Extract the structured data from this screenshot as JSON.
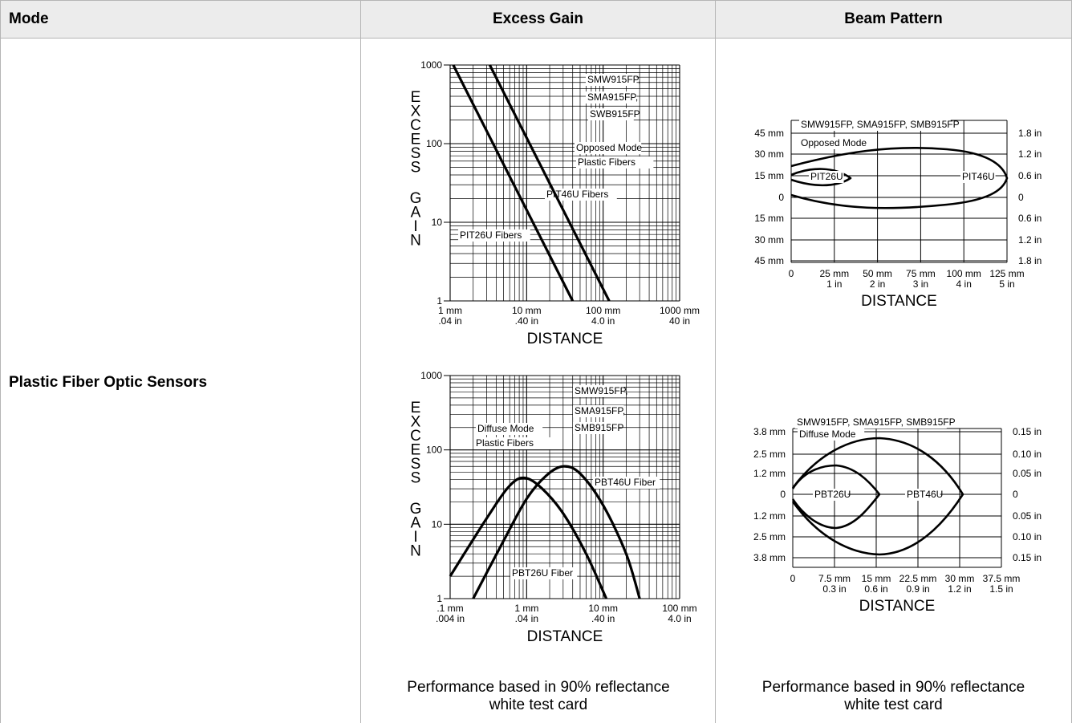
{
  "table": {
    "headers": [
      "Mode",
      "Excess Gain",
      "Beam Pattern"
    ],
    "mode": "Plastic Fiber Optic Sensors",
    "note": [
      "Performance based in 90% reflectance",
      "white test card"
    ]
  },
  "chart_data": [
    {
      "type": "line",
      "title": "",
      "scale": "log-log",
      "ylabel": "EXCESS GAIN",
      "xlabel": "DISTANCE",
      "ylim": [
        1,
        1000
      ],
      "xlim": [
        1,
        1000
      ],
      "y_ticks": [
        "1000",
        "100",
        "10",
        "1"
      ],
      "x_ticks": [
        [
          "1 mm",
          ".04 in"
        ],
        [
          "10 mm",
          ".40 in"
        ],
        [
          "100 mm",
          "4.0 in"
        ],
        [
          "1000 mm",
          "40 in"
        ]
      ],
      "annotations": [
        "SMW915FP,",
        "SMA915FP,",
        "SWB915FP",
        "Opposed Mode",
        "Plastic Fibers"
      ],
      "series": [
        {
          "name": "PIT26U Fibers",
          "points": [
            [
              1.1,
              1000
            ],
            [
              40,
              1
            ]
          ]
        },
        {
          "name": "PIT46U Fibers",
          "points": [
            [
              3.3,
              1000
            ],
            [
              120,
              1
            ]
          ]
        }
      ]
    },
    {
      "type": "line",
      "title": "",
      "ylabel": "",
      "xlabel": "DISTANCE",
      "xlim": [
        0,
        125
      ],
      "ylim": [
        -55,
        55
      ],
      "x_ticks": [
        [
          "0",
          ""
        ],
        [
          "25 mm",
          "1 in"
        ],
        [
          "50 mm",
          "2 in"
        ],
        [
          "75 mm",
          "3 in"
        ],
        [
          "100 mm",
          "4 in"
        ],
        [
          "125 mm",
          "5 in"
        ]
      ],
      "y_ticks_left": [
        "45 mm",
        "30 mm",
        "15 mm",
        "0",
        "15 mm",
        "30 mm",
        "45 mm"
      ],
      "y_ticks_right": [
        "1.8 in",
        "1.2 in",
        "0.6 in",
        "0",
        "0.6 in",
        "1.2 in",
        "1.8 in"
      ],
      "annotations": [
        "SMW915FP, SMA915FP, SMB915FP",
        "Opposed Mode"
      ],
      "series": [
        {
          "name": "PIT26U",
          "shape": "lens",
          "x_end": 25,
          "half_width": 5
        },
        {
          "name": "PIT46U",
          "shape": "envelope",
          "x_end": 125,
          "half_width": 20
        }
      ]
    },
    {
      "type": "line",
      "title": "",
      "scale": "log-log",
      "ylabel": "EXCESS GAIN",
      "xlabel": "DISTANCE",
      "ylim": [
        1,
        1000
      ],
      "xlim": [
        0.1,
        100
      ],
      "y_ticks": [
        "1000",
        "100",
        "10",
        "1"
      ],
      "x_ticks": [
        [
          ".1 mm",
          ".004 in"
        ],
        [
          "1 mm",
          ".04 in"
        ],
        [
          "10 mm",
          ".40 in"
        ],
        [
          "100 mm",
          "4.0 in"
        ]
      ],
      "annotations": [
        "SMW915FP,",
        "SMA915FP,",
        "SMB915FP",
        "Diffuse Mode",
        "Plastic Fibers"
      ],
      "series": [
        {
          "name": "PBT26U Fiber",
          "points": [
            [
              0.1,
              2
            ],
            [
              0.3,
              12
            ],
            [
              0.6,
              33
            ],
            [
              0.95,
              42
            ],
            [
              1.6,
              30
            ],
            [
              3,
              14
            ],
            [
              6,
              4
            ],
            [
              11,
              1
            ]
          ]
        },
        {
          "name": "PBT46U Fiber",
          "points": [
            [
              0.2,
              1
            ],
            [
              0.5,
              6
            ],
            [
              1,
              22
            ],
            [
              1.8,
              45
            ],
            [
              3,
              60
            ],
            [
              5,
              48
            ],
            [
              10,
              18
            ],
            [
              20,
              4
            ],
            [
              30,
              1
            ]
          ]
        }
      ]
    },
    {
      "type": "line",
      "title": "",
      "ylabel": "",
      "xlabel": "DISTANCE",
      "xlim": [
        0,
        37.5
      ],
      "ylim": [
        -4.5,
        4.5
      ],
      "x_ticks": [
        [
          "0",
          ""
        ],
        [
          "7.5 mm",
          "0.3 in"
        ],
        [
          "15 mm",
          "0.6 in"
        ],
        [
          "22.5 mm",
          "0.9 in"
        ],
        [
          "30 mm",
          "1.2 in"
        ],
        [
          "37.5 mm",
          "1.5 in"
        ]
      ],
      "y_ticks_left": [
        "3.8 mm",
        "2.5 mm",
        "1.2 mm",
        "0",
        "1.2 mm",
        "2.5 mm",
        "3.8 mm"
      ],
      "y_ticks_right": [
        "0.15 in",
        "0.10 in",
        "0.05 in",
        "0",
        "0.05 in",
        "0.10 in",
        "0.15 in"
      ],
      "annotations": [
        "SMW915FP, SMA915FP, SMB915FP",
        "Diffuse Mode"
      ],
      "series": [
        {
          "name": "PBT26U",
          "shape": "lens",
          "x_peak": 7.5,
          "x_end": 15,
          "half_width": 1.6
        },
        {
          "name": "PBT46U",
          "shape": "lens",
          "x_peak": 15,
          "x_end": 30,
          "half_width": 3.5
        }
      ]
    }
  ]
}
